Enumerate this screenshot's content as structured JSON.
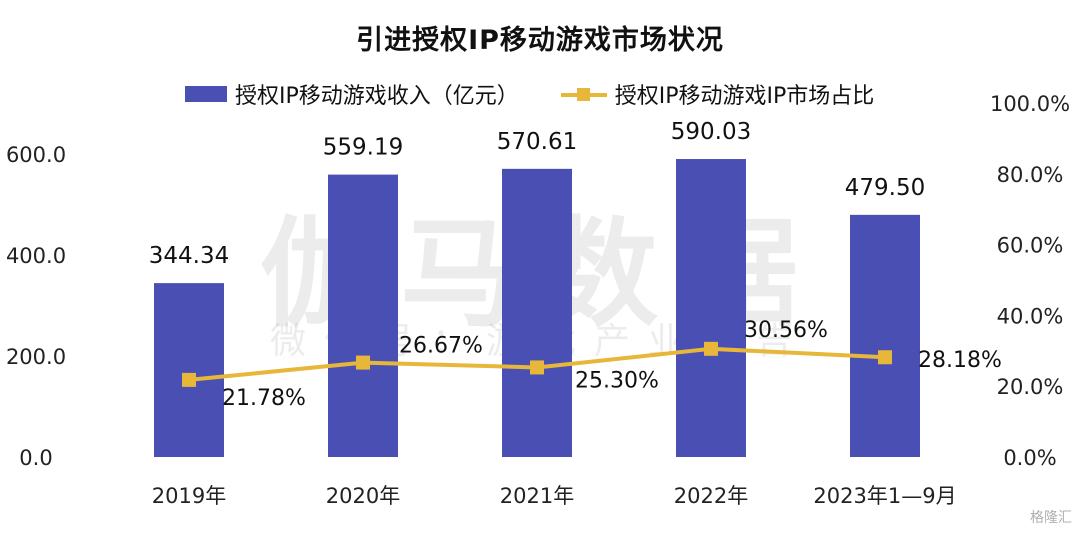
{
  "chart_data": {
    "type": "bar",
    "title": "引进授权IP移动游戏市场状况",
    "categories": [
      "2019年",
      "2020年",
      "2021年",
      "2022年",
      "2023年1—9月"
    ],
    "series": [
      {
        "name": "授权IP移动游戏收入（亿元）",
        "type": "bar",
        "axis": "left",
        "color": "#4a4fb3",
        "values": [
          344.34,
          559.19,
          570.61,
          590.03,
          479.5
        ],
        "labels": [
          "344.34",
          "559.19",
          "570.61",
          "590.03",
          "479.50"
        ]
      },
      {
        "name": "授权IP移动游戏IP市场占比",
        "type": "line",
        "axis": "right",
        "color": "#e7b73a",
        "values": [
          21.78,
          26.67,
          25.3,
          30.56,
          28.18
        ],
        "labels": [
          "21.78%",
          "26.67%",
          "25.30%",
          "30.56%",
          "28.18%"
        ]
      }
    ],
    "y_left": {
      "ylim": [
        0,
        600
      ],
      "ticks": [
        0,
        200,
        400,
        600
      ],
      "tick_labels": [
        "0.0",
        "200.0",
        "400.0",
        "600.0"
      ]
    },
    "y_right": {
      "ylim": [
        0,
        100
      ],
      "ticks": [
        0,
        20,
        40,
        60,
        80,
        100
      ],
      "tick_labels": [
        "0.0%",
        "20.0%",
        "40.0%",
        "60.0%",
        "80.0%",
        "100.0%"
      ]
    },
    "grid": false,
    "legend": "top"
  },
  "watermark": {
    "main": "伽马数据",
    "sub": "微信号：游戏产业报告"
  },
  "corner_logo": "格隆汇"
}
